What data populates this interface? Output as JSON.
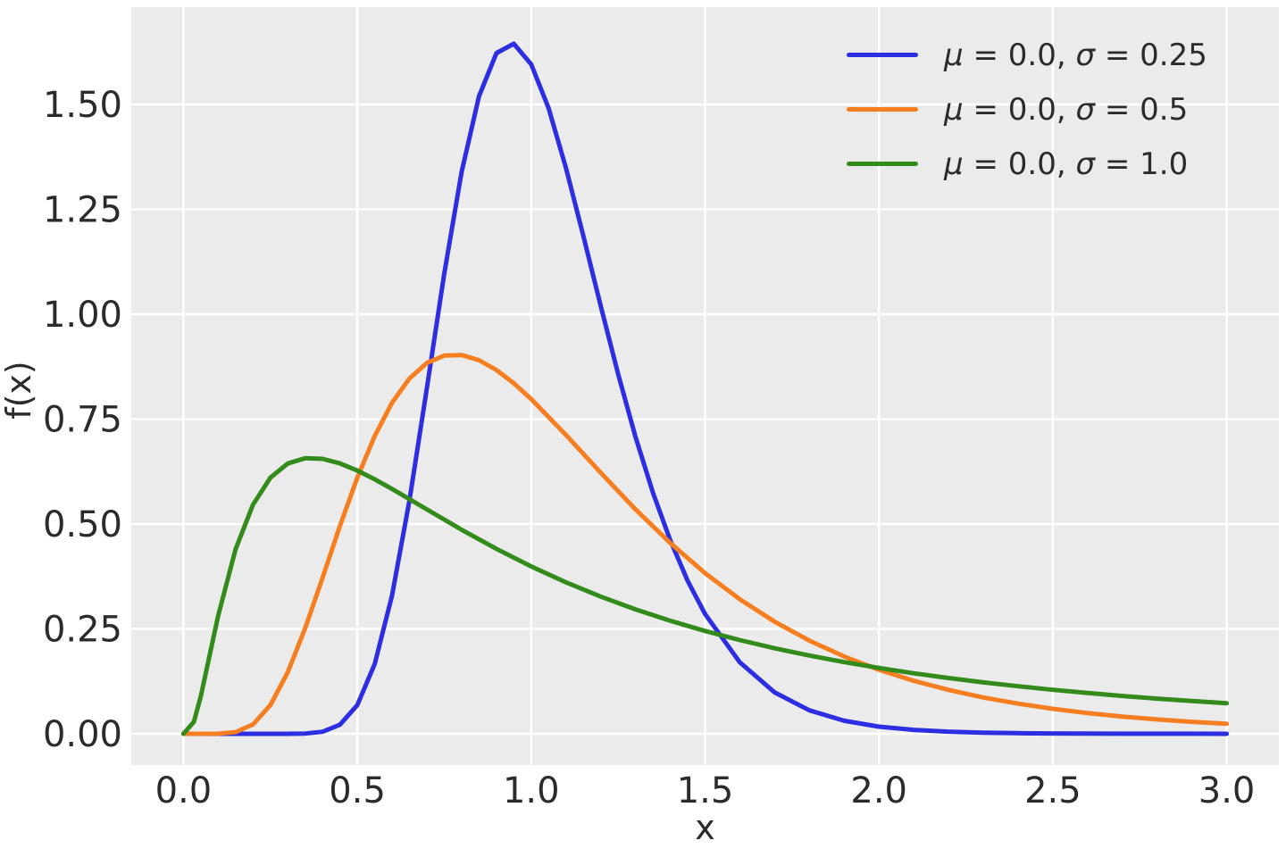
{
  "chart_data": {
    "type": "line",
    "title": "",
    "xlabel": "x",
    "ylabel": "f(x)",
    "xlim": [
      -0.15,
      3.15
    ],
    "ylim": [
      -0.0745,
      1.732
    ],
    "x_ticks": [
      0.0,
      0.5,
      1.0,
      1.5,
      2.0,
      2.5,
      3.0
    ],
    "x_tick_labels": [
      "0.0",
      "0.5",
      "1.0",
      "1.5",
      "2.0",
      "2.5",
      "3.0"
    ],
    "y_ticks": [
      0.0,
      0.25,
      0.5,
      0.75,
      1.0,
      1.25,
      1.5
    ],
    "y_tick_labels": [
      "0.00",
      "0.25",
      "0.50",
      "0.75",
      "1.00",
      "1.25",
      "1.50"
    ],
    "grid": true,
    "legend_position": "upper right",
    "plot_background": "#ebebeb",
    "grid_color": "#ffffff",
    "text_color": "#2b2b2b",
    "series": [
      {
        "name": "μ = 0.0, σ = 0.25",
        "distribution": "lognormal-pdf",
        "mu": "0.0",
        "sigma": "0.25",
        "color": "#2d2de1",
        "peak": {
          "x": 0.939,
          "y": 1.646
        },
        "points": [
          [
            0,
            0
          ],
          [
            0.1,
            0
          ],
          [
            0.2,
            0
          ],
          [
            0.3,
            0
          ],
          [
            0.35,
            0.0007
          ],
          [
            0.4,
            0.0048
          ],
          [
            0.45,
            0.0216
          ],
          [
            0.5,
            0.0684
          ],
          [
            0.55,
            0.1663
          ],
          [
            0.6,
            0.3298
          ],
          [
            0.65,
            0.5563
          ],
          [
            0.7,
            0.824
          ],
          [
            0.75,
            1.0974
          ],
          [
            0.8,
            1.3393
          ],
          [
            0.85,
            1.5198
          ],
          [
            0.9,
            1.6224
          ],
          [
            0.95,
            1.6448
          ],
          [
            1.0,
            1.5958
          ],
          [
            1.05,
            1.4911
          ],
          [
            1.1,
            1.349
          ],
          [
            1.15,
            1.1869
          ],
          [
            1.2,
            1.0193
          ],
          [
            1.25,
            0.8572
          ],
          [
            1.3,
            0.7077
          ],
          [
            1.35,
            0.575
          ],
          [
            1.4,
            0.4608
          ],
          [
            1.45,
            0.3647
          ],
          [
            1.5,
            0.2856
          ],
          [
            1.6,
            0.1704
          ],
          [
            1.7,
            0.0987
          ],
          [
            1.8,
            0.0559
          ],
          [
            1.9,
            0.0311
          ],
          [
            2.0,
            0.0171
          ],
          [
            2.1,
            0.0093
          ],
          [
            2.2,
            0.005
          ],
          [
            2.3,
            0.0027
          ],
          [
            2.4,
            0.0014
          ],
          [
            2.5,
            0.0008
          ],
          [
            2.6,
            0.0004
          ],
          [
            2.7,
            0.0002
          ],
          [
            2.8,
            0.0001
          ],
          [
            2.9,
            0.0001
          ],
          [
            3.0,
            0
          ]
        ]
      },
      {
        "name": "μ = 0.0, σ = 0.5",
        "distribution": "lognormal-pdf",
        "mu": "0.0",
        "sigma": "0.5",
        "color": "#f57e20",
        "peak": {
          "x": 0.779,
          "y": 0.904
        },
        "points": [
          [
            0,
            0
          ],
          [
            0.1,
            0.0002
          ],
          [
            0.15,
            0.004
          ],
          [
            0.2,
            0.0224
          ],
          [
            0.25,
            0.0684
          ],
          [
            0.3,
            0.1465
          ],
          [
            0.35,
            0.2515
          ],
          [
            0.4,
            0.372
          ],
          [
            0.45,
            0.4953
          ],
          [
            0.5,
            0.6104
          ],
          [
            0.55,
            0.7098
          ],
          [
            0.6,
            0.7891
          ],
          [
            0.65,
            0.8469
          ],
          [
            0.7,
            0.8838
          ],
          [
            0.75,
            0.9016
          ],
          [
            0.8,
            0.9028
          ],
          [
            0.85,
            0.8904
          ],
          [
            0.9,
            0.8671
          ],
          [
            0.95,
            0.8355
          ],
          [
            1.0,
            0.7979
          ],
          [
            1.1,
            0.7123
          ],
          [
            1.2,
            0.6221
          ],
          [
            1.3,
            0.5348
          ],
          [
            1.4,
            0.4547
          ],
          [
            1.5,
            0.3829
          ],
          [
            1.6,
            0.3206
          ],
          [
            1.7,
            0.2673
          ],
          [
            1.8,
            0.2221
          ],
          [
            1.9,
            0.1842
          ],
          [
            2.0,
            0.1526
          ],
          [
            2.1,
            0.1264
          ],
          [
            2.2,
            0.1046
          ],
          [
            2.3,
            0.0866
          ],
          [
            2.4,
            0.0718
          ],
          [
            2.5,
            0.0595
          ],
          [
            2.6,
            0.0494
          ],
          [
            2.7,
            0.0411
          ],
          [
            2.8,
            0.0342
          ],
          [
            2.9,
            0.0285
          ],
          [
            3.0,
            0.0238
          ]
        ]
      },
      {
        "name": "μ = 0.0, σ = 1.0",
        "distribution": "lognormal-pdf",
        "mu": "0.0",
        "sigma": "1.0",
        "color": "#338b1b",
        "peak": {
          "x": 0.368,
          "y": 0.658
        },
        "points": [
          [
            0,
            0
          ],
          [
            0.03,
            0.0285
          ],
          [
            0.05,
            0.0897
          ],
          [
            0.1,
            0.2815
          ],
          [
            0.15,
            0.4399
          ],
          [
            0.2,
            0.5462
          ],
          [
            0.25,
            0.6104
          ],
          [
            0.3,
            0.6442
          ],
          [
            0.35,
            0.6569
          ],
          [
            0.4,
            0.6554
          ],
          [
            0.45,
            0.6445
          ],
          [
            0.5,
            0.6275
          ],
          [
            0.55,
            0.6067
          ],
          [
            0.6,
            0.5836
          ],
          [
            0.7,
            0.5348
          ],
          [
            0.8,
            0.4864
          ],
          [
            0.9,
            0.4408
          ],
          [
            1.0,
            0.3989
          ],
          [
            1.1,
            0.361
          ],
          [
            1.2,
            0.327
          ],
          [
            1.3,
            0.2965
          ],
          [
            1.4,
            0.2693
          ],
          [
            1.5,
            0.245
          ],
          [
            1.6,
            0.2233
          ],
          [
            1.7,
            0.2039
          ],
          [
            1.8,
            0.1865
          ],
          [
            1.9,
            0.1709
          ],
          [
            2.0,
            0.1569
          ],
          [
            2.1,
            0.1443
          ],
          [
            2.2,
            0.1329
          ],
          [
            2.3,
            0.1226
          ],
          [
            2.4,
            0.1133
          ],
          [
            2.5,
            0.1049
          ],
          [
            2.6,
            0.0972
          ],
          [
            2.7,
            0.0902
          ],
          [
            2.8,
            0.0839
          ],
          [
            2.9,
            0.078
          ],
          [
            3.0,
            0.0727
          ]
        ]
      }
    ]
  },
  "legend": {
    "mu_symbol": "μ",
    "sigma_symbol": "σ",
    "eq": " = ",
    "comma": ", "
  }
}
